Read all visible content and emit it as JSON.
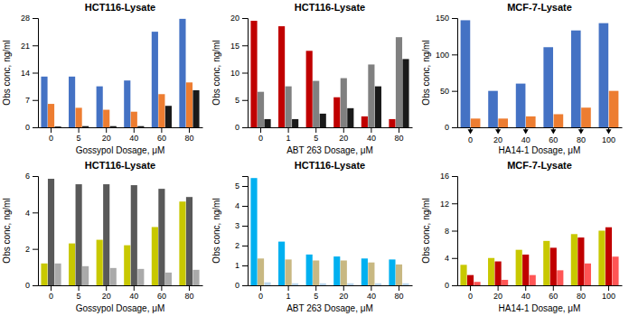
{
  "chart_data": [
    {
      "type": "bar",
      "title": "HCT116-Lysate",
      "xlabel": "Gossypol Dosage, μM",
      "ylabel": "Obs conc, ng/ml",
      "categories": [
        "0",
        "5",
        "20",
        "40",
        "60",
        "80"
      ],
      "series": [
        {
          "color": "#4472C4",
          "values": [
            13.0,
            13.0,
            10.5,
            12.0,
            24.5,
            27.8
          ]
        },
        {
          "color": "#ED7D31",
          "values": [
            6.0,
            5.0,
            4.5,
            4.0,
            8.5,
            11.5
          ]
        },
        {
          "color": "#1A1A1A",
          "values": [
            0.2,
            0.3,
            0.3,
            0.3,
            5.5,
            9.5
          ]
        }
      ],
      "ylim": [
        0,
        28
      ],
      "yticks": [
        0,
        7,
        14,
        21,
        28
      ],
      "grid": false
    },
    {
      "type": "bar",
      "title": "HCT116-Lysate",
      "xlabel": "ABT 263 Dosage, μM",
      "ylabel": "Obs conc, ng/ml",
      "categories": [
        "0",
        "1",
        "5",
        "20",
        "40",
        "80"
      ],
      "series": [
        {
          "color": "#C00000",
          "values": [
            19.5,
            18.5,
            14.0,
            5.5,
            2.0,
            1.5
          ]
        },
        {
          "color": "#808080",
          "values": [
            6.5,
            7.5,
            8.5,
            9.0,
            11.5,
            16.5
          ]
        },
        {
          "color": "#1A1A1A",
          "values": [
            1.5,
            1.5,
            2.5,
            3.5,
            7.5,
            12.5
          ]
        }
      ],
      "ylim": [
        0,
        20
      ],
      "yticks": [
        0,
        5,
        10,
        15,
        20
      ],
      "grid": false
    },
    {
      "type": "bar",
      "title": "MCF-7-Lysate",
      "xlabel": "HA14-1 Dosage, μM",
      "ylabel": "Obs conc, ng/ml",
      "categories": [
        "0",
        "20",
        "40",
        "60",
        "80",
        "100"
      ],
      "series": [
        {
          "color": "#4472C4",
          "values": [
            147,
            50,
            60,
            110,
            133,
            143
          ]
        },
        {
          "color": "#ED7D31",
          "values": [
            12,
            12,
            15,
            18,
            27,
            50
          ]
        }
      ],
      "ylim": [
        0,
        150
      ],
      "yticks": [
        0,
        50,
        100,
        150
      ],
      "grid": false,
      "marker": "triangle-down"
    },
    {
      "type": "bar",
      "title": "HCT116-Lysate",
      "xlabel": "Gossypol Dosage, μM",
      "ylabel": "Obs conc, ng/ml",
      "categories": [
        "0",
        "5",
        "20",
        "40",
        "60",
        "80"
      ],
      "series": [
        {
          "color": "#C8C800",
          "values": [
            1.2,
            2.3,
            2.5,
            2.2,
            3.2,
            4.6
          ]
        },
        {
          "color": "#595959",
          "values": [
            5.85,
            5.55,
            5.55,
            5.5,
            5.3,
            4.85
          ]
        },
        {
          "color": "#AAAAAA",
          "values": [
            1.2,
            1.05,
            0.95,
            0.9,
            0.7,
            0.85
          ]
        }
      ],
      "ylim": [
        0,
        6
      ],
      "yticks": [
        0,
        2,
        4,
        6
      ],
      "grid": false
    },
    {
      "type": "bar",
      "title": "HCT116-Lysate",
      "xlabel": "ABT 263 Dosage, μM",
      "ylabel": "Obs conc, ng/ml",
      "categories": [
        "0",
        "1",
        "5",
        "20",
        "40",
        "80"
      ],
      "series": [
        {
          "color": "#00B0F0",
          "values": [
            5.4,
            2.2,
            1.55,
            1.45,
            1.35,
            1.3
          ]
        },
        {
          "color": "#C8B882",
          "values": [
            1.35,
            1.3,
            1.25,
            1.25,
            1.15,
            1.05
          ]
        },
        {
          "color": "#B8D4EC",
          "values": [
            0.15,
            0.1,
            0.1,
            0.1,
            0.1,
            0.1
          ]
        }
      ],
      "ylim": [
        0,
        5.5
      ],
      "yticks": [
        0,
        1,
        2,
        3,
        4,
        5
      ],
      "grid": false
    },
    {
      "type": "bar",
      "title": "MCF-7-Lysate",
      "xlabel": "HA14-1 Dosage, μM",
      "ylabel": "Obs conc, ng/ml",
      "categories": [
        "0",
        "20",
        "40",
        "60",
        "80",
        "100"
      ],
      "series": [
        {
          "color": "#C8C800",
          "values": [
            3.0,
            4.0,
            5.2,
            6.5,
            7.5,
            8.0
          ]
        },
        {
          "color": "#C00000",
          "values": [
            1.5,
            3.5,
            4.5,
            5.5,
            7.0,
            8.5
          ]
        },
        {
          "color": "#FF5555",
          "values": [
            0.5,
            0.8,
            1.5,
            2.2,
            3.2,
            4.2
          ]
        }
      ],
      "ylim": [
        0,
        16
      ],
      "yticks": [
        0,
        4,
        8,
        12,
        16
      ],
      "grid": false
    }
  ]
}
